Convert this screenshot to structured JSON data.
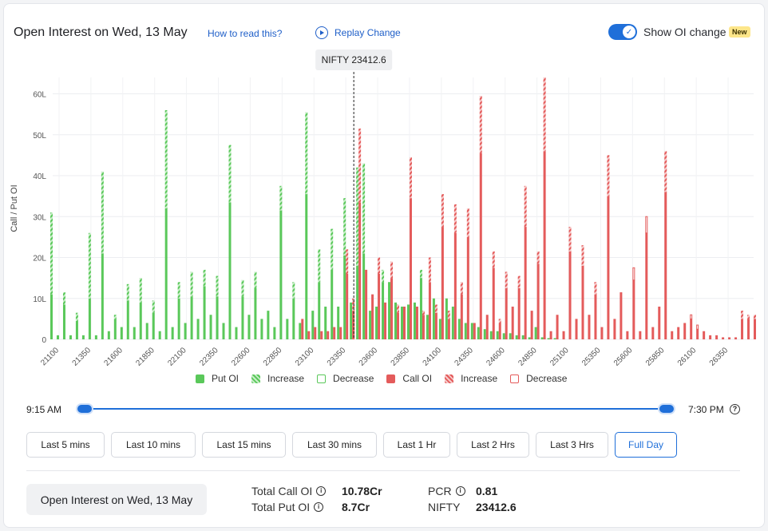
{
  "header": {
    "title": "Open Interest on Wed, 13 May",
    "how_to_read": "How to read this?",
    "replay": "Replay Change",
    "toggle_label": "Show OI change",
    "toggle_on": true,
    "new_badge": "New"
  },
  "colors": {
    "put": "#5ac85a",
    "call": "#e45b5b",
    "accent": "#1f6fd9"
  },
  "tooltip": "NIFTY 23412.6",
  "chart_data": {
    "type": "bar",
    "ylabel": "Call / Put OI",
    "ylim": [
      0,
      64
    ],
    "y_unit": "L",
    "yticks": [
      "0",
      "10L",
      "20L",
      "30L",
      "40L",
      "50L",
      "60L"
    ],
    "xlim": [
      21050,
      26550
    ],
    "xticks": [
      21100,
      21350,
      21600,
      21850,
      22100,
      22350,
      22600,
      22850,
      23100,
      23350,
      23600,
      23850,
      24100,
      24350,
      24600,
      24850,
      25100,
      25350,
      25600,
      25850,
      26100,
      26350
    ],
    "spot": 23412.6,
    "legend": [
      "Put OI",
      "Increase",
      "Decrease",
      "Call OI",
      "Increase",
      "Decrease"
    ],
    "put_strikes": [
      21050,
      21100,
      21150,
      21200,
      21250,
      21300,
      21350,
      21400,
      21450,
      21500,
      21550,
      21600,
      21650,
      21700,
      21750,
      21800,
      21850,
      21900,
      21950,
      22000,
      22050,
      22100,
      22150,
      22200,
      22250,
      22300,
      22350,
      22400,
      22450,
      22500,
      22550,
      22600,
      22650,
      22700,
      22750,
      22800,
      22850,
      22900,
      22950,
      23000,
      23050,
      23100,
      23150,
      23200,
      23250,
      23300,
      23350,
      23400,
      23450,
      23500,
      23550,
      23600,
      23650,
      23700,
      23750,
      23800,
      23850,
      23900,
      23950,
      24000,
      24050,
      24100,
      24150,
      24200,
      24250,
      24300,
      24350,
      24400,
      24450,
      24500,
      24550,
      24600,
      24650,
      24700,
      24750,
      24800,
      24850,
      24900,
      24950,
      25000
    ],
    "put_oi": [
      31,
      1,
      11.5,
      1,
      6.5,
      1,
      26,
      1,
      41,
      2,
      6,
      3,
      13.5,
      3,
      15,
      4,
      9.5,
      2,
      56,
      3,
      14,
      4,
      16.5,
      5,
      17,
      6,
      15.5,
      4,
      47.5,
      3,
      14.5,
      6,
      16.5,
      5,
      7,
      3,
      37.5,
      5,
      14,
      4,
      55.5,
      7,
      22,
      8,
      27,
      8,
      34.5,
      9,
      42,
      43,
      7,
      8,
      17,
      14,
      9,
      8,
      8.5,
      9,
      17,
      6,
      10,
      5,
      10,
      8,
      5,
      4,
      4,
      3,
      2.5,
      2,
      2,
      1.5,
      1.5,
      1,
      1,
      0.5,
      3,
      0.5,
      0.3,
      0.3
    ],
    "put_change": [
      20,
      0,
      3,
      0,
      2,
      0,
      16,
      0,
      20,
      0,
      1,
      0,
      4,
      0,
      6,
      0,
      3,
      0,
      24,
      0,
      4,
      0,
      6,
      0,
      4,
      0,
      5,
      0,
      14,
      0,
      4,
      0,
      4,
      0,
      0,
      0,
      6,
      0,
      4,
      0,
      20,
      0,
      8,
      0,
      10,
      0,
      14,
      0,
      24,
      22,
      0,
      0,
      3,
      0,
      0,
      0,
      0,
      0,
      2,
      0,
      0,
      0,
      0,
      0,
      0,
      0,
      0,
      0,
      0,
      0,
      0,
      0,
      0,
      0,
      0,
      0,
      0,
      0,
      0,
      0
    ],
    "call_strikes": [
      23000,
      23050,
      23100,
      23150,
      23200,
      23250,
      23300,
      23350,
      23400,
      23450,
      23500,
      23550,
      23600,
      23650,
      23700,
      23750,
      23800,
      23850,
      23900,
      23950,
      24000,
      24050,
      24100,
      24150,
      24200,
      24250,
      24300,
      24350,
      24400,
      24450,
      24500,
      24550,
      24600,
      24650,
      24700,
      24750,
      24800,
      24850,
      24900,
      24950,
      25000,
      25050,
      25100,
      25150,
      25200,
      25250,
      25300,
      25350,
      25400,
      25450,
      25500,
      25550,
      25600,
      25650,
      25700,
      25750,
      25800,
      25850,
      25900,
      25950,
      26000,
      26050,
      26100,
      26150,
      26200,
      26250,
      26300,
      26350,
      26400,
      26450,
      26500,
      26550
    ],
    "call_oi": [
      5,
      2,
      3,
      2,
      2,
      3,
      3,
      22,
      10,
      51.5,
      17,
      11,
      20,
      9,
      19,
      8.5,
      8,
      44.5,
      8,
      7,
      20,
      8.5,
      35.5,
      7,
      33,
      14,
      32,
      4,
      59.5,
      6,
      21.5,
      5,
      16.5,
      8,
      15.5,
      37.5,
      7,
      21.5,
      64,
      2,
      6,
      2,
      27.5,
      5,
      23,
      6,
      14,
      3,
      45,
      5,
      11.5,
      2,
      14.5,
      2,
      26,
      3,
      8,
      46,
      2,
      3,
      4,
      5,
      2.5,
      2,
      1,
      1,
      0.5,
      0.5,
      0.5,
      7,
      6,
      6
    ],
    "call_change": [
      0,
      0,
      0,
      0,
      0,
      0,
      0,
      6,
      3,
      18,
      0,
      0,
      4,
      0,
      4,
      2,
      0,
      10,
      0,
      1,
      6,
      2,
      8,
      2,
      7,
      3,
      7,
      0,
      14,
      0,
      4,
      1,
      4,
      0,
      3,
      10,
      0,
      3,
      18,
      0,
      0,
      0,
      6,
      0,
      5,
      0,
      3,
      0,
      10,
      0,
      0,
      0,
      -3,
      0,
      -4,
      0,
      0,
      10,
      0,
      0,
      0,
      -1,
      -1,
      0,
      0,
      0,
      0,
      0,
      0,
      2,
      1,
      1
    ]
  },
  "slider": {
    "start": "9:15 AM",
    "end": "7:30 PM"
  },
  "ranges": [
    "Last 5 mins",
    "Last 10 mins",
    "Last 15 mins",
    "Last 30 mins",
    "Last 1 Hr",
    "Last 2 Hrs",
    "Last 3 Hrs",
    "Full Day"
  ],
  "active_range": "Full Day",
  "summary": {
    "button": "Open Interest on Wed, 13 May",
    "total_call_label": "Total Call OI",
    "total_call": "10.78Cr",
    "total_put_label": "Total Put OI",
    "total_put": "8.7Cr",
    "pcr_label": "PCR",
    "pcr": "0.81",
    "nifty_label": "NIFTY",
    "nifty": "23412.6"
  }
}
